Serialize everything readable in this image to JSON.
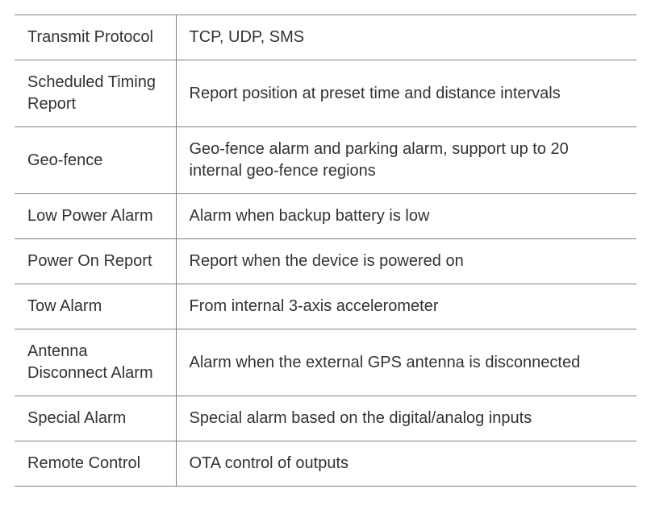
{
  "table": {
    "border_color": "#808080",
    "text_color": "#333333",
    "background_color": "#ffffff",
    "font_size": 20,
    "label_column_width": 200,
    "rows": [
      {
        "label": "Transmit Protocol",
        "value": "TCP, UDP, SMS"
      },
      {
        "label": "Scheduled Timing Report",
        "value": "Report position at preset time and distance intervals"
      },
      {
        "label": "Geo-fence",
        "value": "Geo-fence alarm and parking alarm, support up to 20 internal geo-fence regions"
      },
      {
        "label": "Low Power Alarm",
        "value": "Alarm when backup battery is low"
      },
      {
        "label": "Power On Report",
        "value": "Report when the device is powered on"
      },
      {
        "label": "Tow Alarm",
        "value": "From internal 3-axis accelerometer"
      },
      {
        "label": "Antenna Disconnect Alarm",
        "value": "Alarm when the external GPS antenna is disconnected"
      },
      {
        "label": "Special Alarm",
        "value": "Special alarm based on the digital/analog inputs"
      },
      {
        "label": "Remote Control",
        "value": "OTA control of outputs"
      }
    ]
  }
}
